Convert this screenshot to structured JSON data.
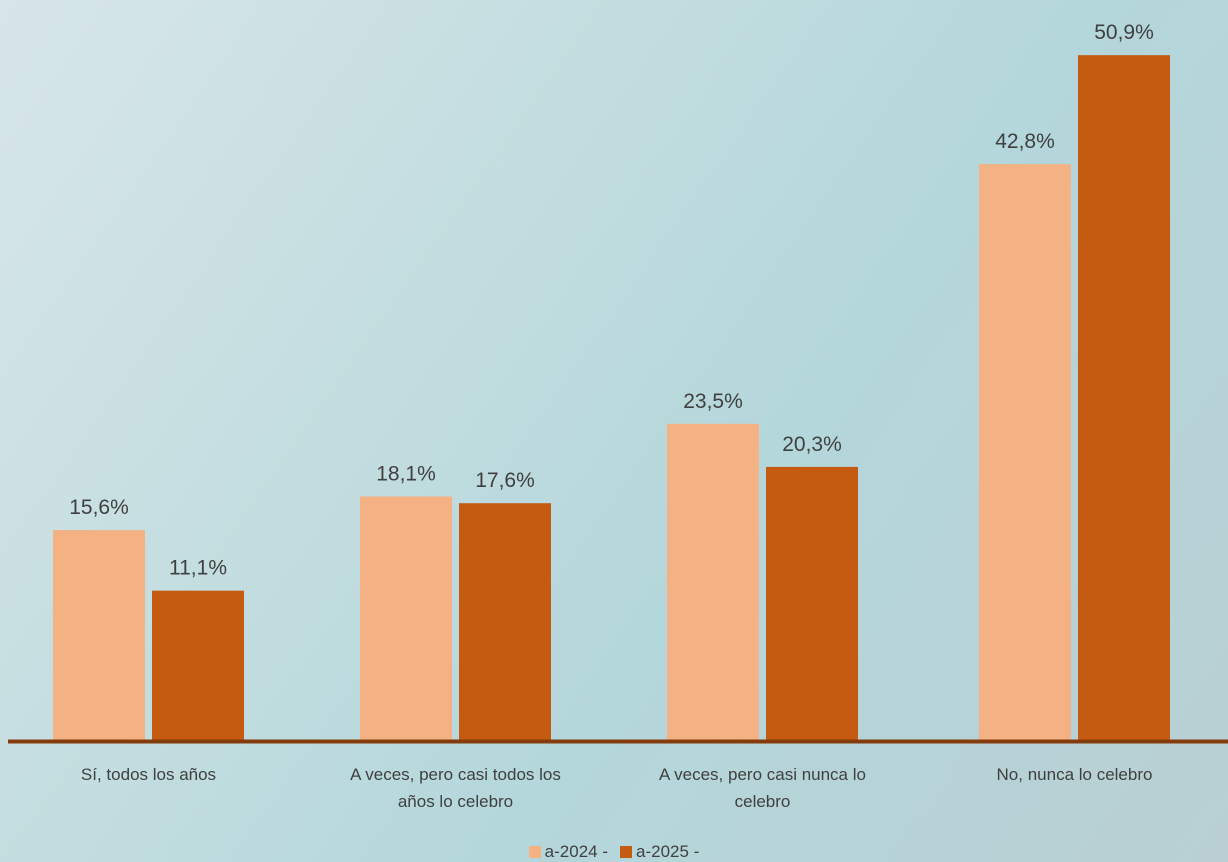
{
  "chart_data": {
    "type": "bar",
    "title": "",
    "xlabel": "",
    "ylabel": "",
    "ylim": [
      0,
      0.55
    ],
    "grid": false,
    "legend_position": "bottom",
    "categories": [
      [
        "Sí, todos los años"
      ],
      [
        "A veces, pero casi todos los",
        "años lo celebro"
      ],
      [
        "A veces, pero casi nunca lo",
        "celebro"
      ],
      [
        "No, nunca lo celebro"
      ]
    ],
    "series": [
      {
        "name": "a-2024 -",
        "color": "#f4b183",
        "values": [
          0.156,
          0.181,
          0.235,
          0.428
        ],
        "labels": [
          "15,6%",
          "18,1%",
          "23,5%",
          "42,8%"
        ]
      },
      {
        "name": "a-2025 -",
        "color": "#c55a11",
        "values": [
          0.111,
          0.176,
          0.203,
          0.509
        ],
        "labels": [
          "11,1%",
          "17,6%",
          "20,3%",
          "50,9%"
        ]
      }
    ],
    "axis_color": "#843c0c"
  }
}
